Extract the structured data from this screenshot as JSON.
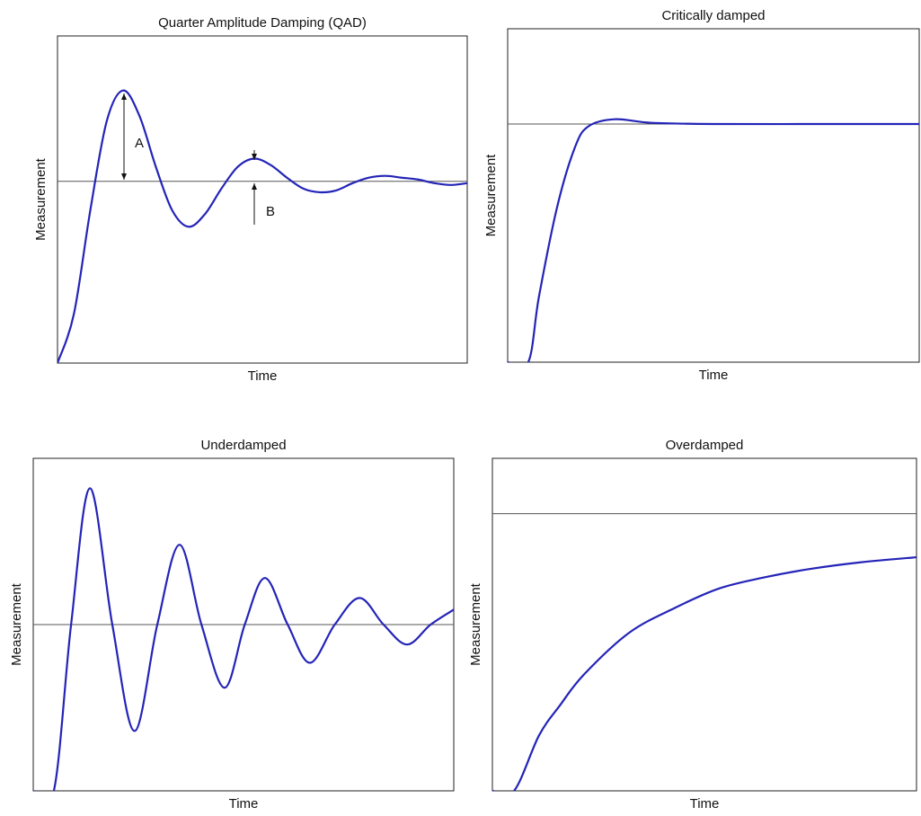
{
  "chart_data": [
    {
      "type": "line",
      "title": "Quarter Amplitude Damping (QAD)",
      "x_label": "Time",
      "y_label": "Measurement",
      "xlim": [
        0,
        10
      ],
      "ylim": [
        0,
        1.8
      ],
      "setpoint": 1,
      "x": [
        0,
        0.4,
        0.8,
        1.2,
        1.6,
        2.0,
        2.4,
        2.8,
        3.2,
        3.6,
        4.0,
        4.4,
        4.8,
        5.2,
        5.6,
        6.0,
        6.4,
        6.8,
        7.2,
        7.6,
        8.0,
        8.4,
        8.8,
        9.2,
        9.6,
        10
      ],
      "series": [
        {
          "color": "#2424b8",
          "values": [
            0,
            0.27,
            0.84,
            1.33,
            1.5,
            1.36,
            1.08,
            0.84,
            0.75,
            0.82,
            0.96,
            1.08,
            1.125,
            1.09,
            1.02,
            0.96,
            0.94,
            0.95,
            0.99,
            1.02,
            1.03,
            1.02,
            1.01,
            0.99,
            0.98,
            0.99
          ]
        }
      ],
      "annotations": [
        "A",
        "B"
      ]
    },
    {
      "type": "line",
      "title": "Critically damped",
      "x_label": "Time",
      "y_label": "Measurement",
      "xlim": [
        0,
        10
      ],
      "ylim": [
        0,
        1.4
      ],
      "setpoint": 1,
      "x": [
        0,
        0.5,
        0.76,
        1.2,
        1.63,
        1.96,
        2.6,
        3.5,
        5,
        7.5,
        10
      ],
      "series": [
        {
          "color": "#2424b8",
          "values": [
            0,
            0,
            0.275,
            0.65,
            0.9,
            0.99,
            1.02,
            1.005,
            1.0,
            1.0,
            1.0
          ]
        }
      ]
    },
    {
      "type": "line",
      "title": "Underdamped",
      "x_label": "Time",
      "y_label": "Measurement",
      "xlim": [
        0,
        10
      ],
      "ylim": [
        0,
        2
      ],
      "setpoint": 1,
      "x": [
        0,
        0.49,
        0.9,
        1.35,
        1.88,
        2.41,
        2.95,
        3.48,
        4.0,
        4.55,
        5.03,
        5.51,
        6.05,
        6.58,
        7.17,
        7.76,
        8.33,
        8.89,
        9.45,
        10
      ],
      "series": [
        {
          "color": "#2424b8",
          "values": [
            0,
            0,
            1.0,
            1.82,
            1.0,
            0.36,
            1.0,
            1.48,
            1.0,
            0.62,
            1.0,
            1.28,
            1.0,
            0.77,
            1.0,
            1.16,
            1.0,
            0.88,
            1.0,
            1.09
          ]
        }
      ]
    },
    {
      "type": "line",
      "title": "Overdamped",
      "x_label": "Time",
      "y_label": "Measurement",
      "xlim": [
        0,
        10
      ],
      "ylim": [
        0,
        1.2
      ],
      "setpoint": 1,
      "x": [
        0,
        0.51,
        1.1,
        1.6,
        2.16,
        3.22,
        4.3,
        5.34,
        6.4,
        7.46,
        8.7,
        10
      ],
      "series": [
        {
          "color": "#2424b8",
          "values": [
            0,
            0,
            0.2,
            0.31,
            0.42,
            0.57,
            0.66,
            0.73,
            0.77,
            0.8,
            0.825,
            0.843
          ]
        }
      ]
    }
  ]
}
